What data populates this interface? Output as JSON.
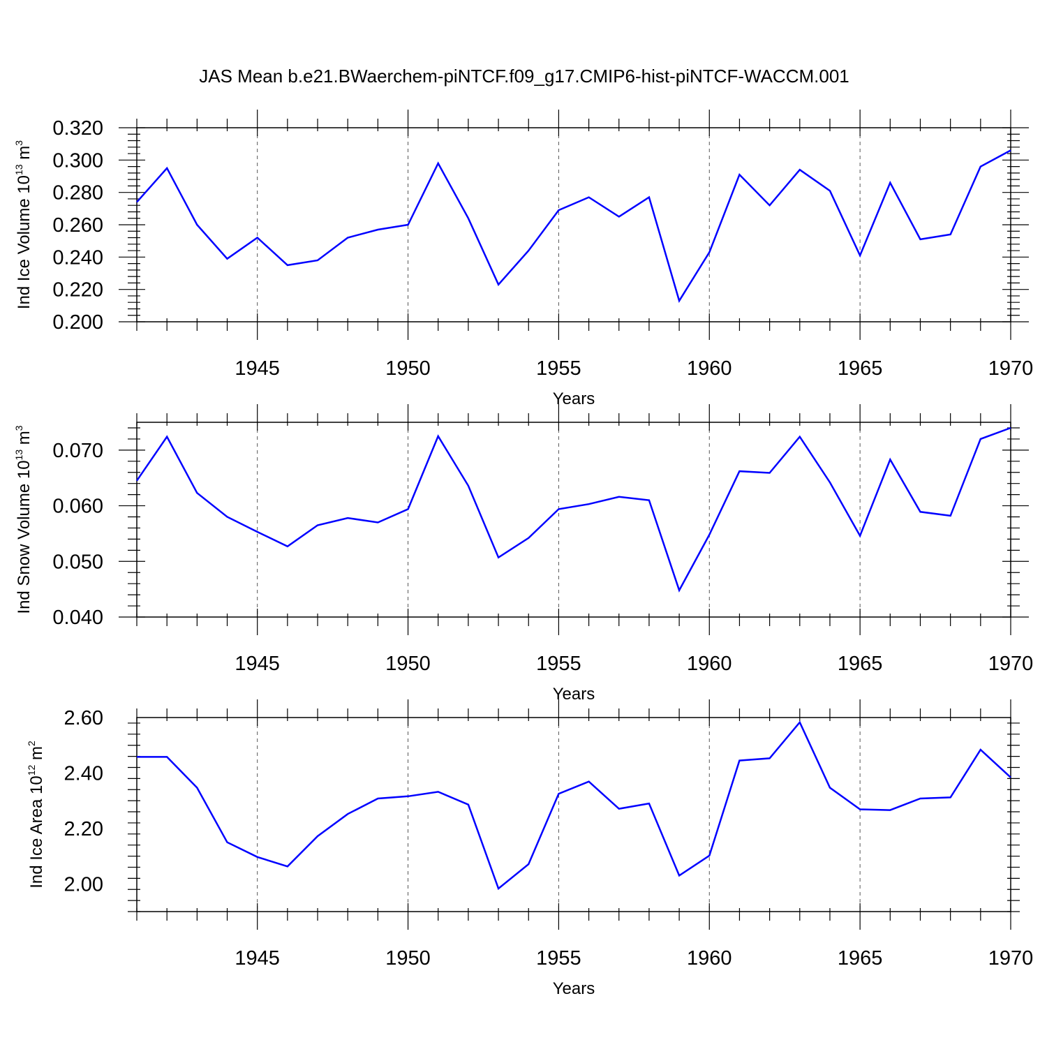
{
  "figure": {
    "title": "JAS Mean b.e21.BWaerchem-piNTCF.f09_g17.CMIP6-hist-piNTCF-WACCM.001"
  },
  "chart_data": [
    {
      "type": "line",
      "xlabel": "Years",
      "ylabel": {
        "base": "Ind Ice Volume 10",
        "exp": "13",
        "unit": " m",
        "unit_exp": "3"
      },
      "xlim": [
        1941,
        1970
      ],
      "ylim": [
        0.2,
        0.32
      ],
      "yticks": [
        0.2,
        0.22,
        0.24,
        0.26,
        0.28,
        0.3,
        0.32
      ],
      "ytick_labels": [
        "0.200",
        "0.220",
        "0.240",
        "0.260",
        "0.280",
        "0.300",
        "0.320"
      ],
      "xticks": [
        1945,
        1950,
        1955,
        1960,
        1965,
        1970
      ],
      "xtick_labels": [
        "1945",
        "1950",
        "1955",
        "1960",
        "1965",
        "1970"
      ],
      "grid": "vertical-dashed-at-major-x",
      "series": [
        {
          "name": "ice-volume",
          "color": "#0000ff",
          "x": [
            1941,
            1942,
            1943,
            1944,
            1945,
            1946,
            1947,
            1948,
            1949,
            1950,
            1951,
            1952,
            1953,
            1954,
            1955,
            1956,
            1957,
            1958,
            1959,
            1960,
            1961,
            1962,
            1963,
            1964,
            1965,
            1966,
            1967,
            1968,
            1969,
            1970
          ],
          "values": [
            0.274,
            0.295,
            0.26,
            0.239,
            0.252,
            0.235,
            0.238,
            0.252,
            0.257,
            0.26,
            0.298,
            0.264,
            0.223,
            0.244,
            0.269,
            0.277,
            0.265,
            0.277,
            0.213,
            0.243,
            0.291,
            0.272,
            0.294,
            0.281,
            0.241,
            0.286,
            0.251,
            0.254,
            0.296,
            0.306
          ]
        }
      ]
    },
    {
      "type": "line",
      "xlabel": "Years",
      "ylabel": {
        "base": "Ind Snow Volume 10",
        "exp": "13",
        "unit": " m",
        "unit_exp": "3"
      },
      "xlim": [
        1941,
        1970
      ],
      "ylim": [
        0.04,
        0.075
      ],
      "yticks": [
        0.04,
        0.05,
        0.06,
        0.07
      ],
      "ytick_labels": [
        "0.040",
        "0.050",
        "0.060",
        "0.070"
      ],
      "xticks": [
        1945,
        1950,
        1955,
        1960,
        1965,
        1970
      ],
      "xtick_labels": [
        "1945",
        "1950",
        "1955",
        "1960",
        "1965",
        "1970"
      ],
      "grid": "vertical-dashed-at-major-x",
      "series": [
        {
          "name": "snow-volume",
          "color": "#0000ff",
          "x": [
            1941,
            1942,
            1943,
            1944,
            1945,
            1946,
            1947,
            1948,
            1949,
            1950,
            1951,
            1952,
            1953,
            1954,
            1955,
            1956,
            1957,
            1958,
            1959,
            1960,
            1961,
            1962,
            1963,
            1964,
            1965,
            1966,
            1967,
            1968,
            1969,
            1970
          ],
          "values": [
            0.0645,
            0.0724,
            0.0623,
            0.058,
            0.0553,
            0.0527,
            0.0565,
            0.0578,
            0.057,
            0.0594,
            0.0725,
            0.0636,
            0.0507,
            0.0542,
            0.0594,
            0.0603,
            0.0616,
            0.061,
            0.0448,
            0.0548,
            0.0662,
            0.0659,
            0.0724,
            0.0642,
            0.0546,
            0.0683,
            0.0589,
            0.0582,
            0.072,
            0.074
          ]
        }
      ]
    },
    {
      "type": "line",
      "xlabel": "Years",
      "ylabel": {
        "base": "Ind Ice Area 10",
        "exp": "12",
        "unit": " m",
        "unit_exp": "2"
      },
      "xlim": [
        1941,
        1970
      ],
      "ylim": [
        1.9,
        2.6
      ],
      "yticks": [
        2.0,
        2.2,
        2.4,
        2.6
      ],
      "ytick_labels": [
        "2.00",
        "2.20",
        "2.40",
        "2.60"
      ],
      "xticks": [
        1945,
        1950,
        1955,
        1960,
        1965,
        1970
      ],
      "xtick_labels": [
        "1945",
        "1950",
        "1955",
        "1960",
        "1965",
        "1970"
      ],
      "grid": "vertical-dashed-at-major-x",
      "series": [
        {
          "name": "ice-area",
          "color": "#0000ff",
          "x": [
            1941,
            1942,
            1943,
            1944,
            1945,
            1946,
            1947,
            1948,
            1949,
            1950,
            1951,
            1952,
            1953,
            1954,
            1955,
            1956,
            1957,
            1958,
            1959,
            1960,
            1961,
            1962,
            1963,
            1964,
            1965,
            1966,
            1967,
            1968,
            1969,
            1970
          ],
          "values": [
            2.458,
            2.458,
            2.347,
            2.15,
            2.097,
            2.063,
            2.172,
            2.252,
            2.308,
            2.316,
            2.332,
            2.286,
            1.983,
            2.071,
            2.325,
            2.369,
            2.271,
            2.29,
            2.03,
            2.102,
            2.445,
            2.453,
            2.583,
            2.347,
            2.269,
            2.266,
            2.308,
            2.312,
            2.484,
            2.384
          ]
        }
      ]
    }
  ]
}
